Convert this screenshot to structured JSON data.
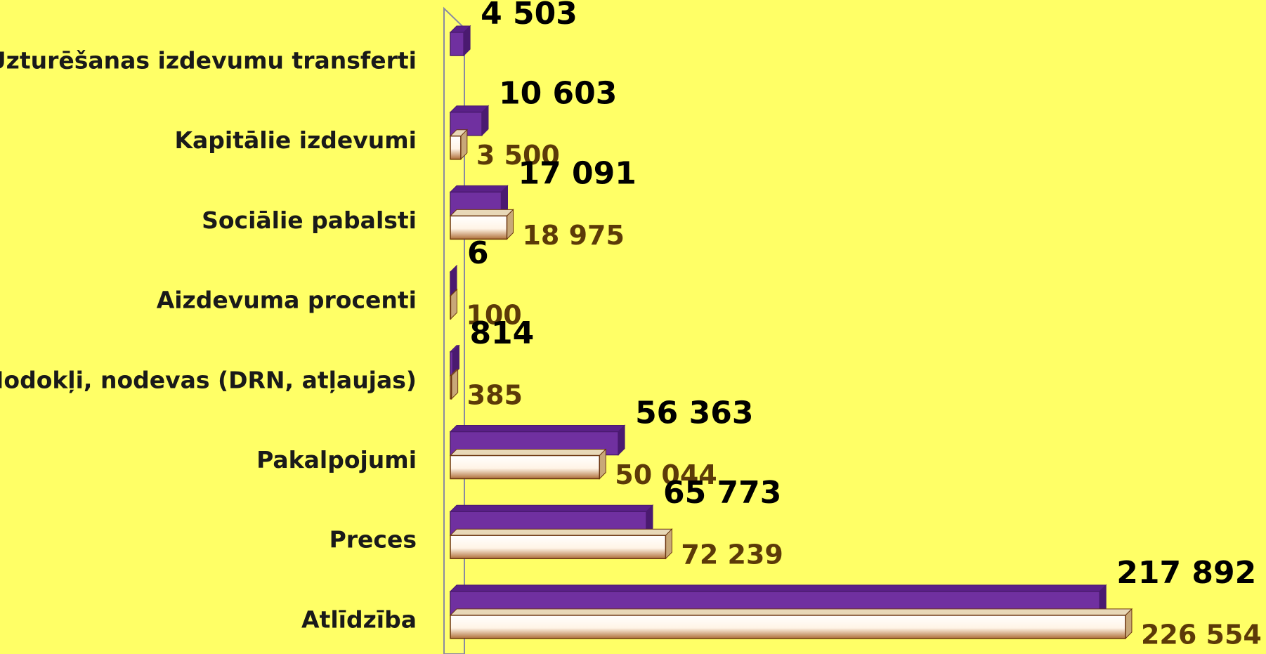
{
  "chart_data": {
    "type": "bar",
    "orientation": "horizontal",
    "categories": [
      "Uzturēšanas izdevumu transferti",
      "Kapitālie izdevumi",
      "Sociālie pabalsti",
      "Aizdevuma procenti",
      "Nodokļi, nodevas (DRN, atļaujas)",
      "Pakalpojumi",
      "Preces",
      "Atlīdzība"
    ],
    "series": [
      {
        "color": "#7030a0",
        "values": [
          4503,
          10603,
          17091,
          6,
          814,
          56363,
          65773,
          217892
        ],
        "value_labels": [
          "4 503",
          "10 603",
          "17 091",
          "6",
          "814",
          "56 363",
          "65 773",
          "217 892"
        ]
      },
      {
        "color": "#b0703a",
        "values": [
          null,
          3500,
          18975,
          100,
          385,
          50044,
          72239,
          226554
        ],
        "value_labels": [
          null,
          "3 500",
          "18 975",
          "100",
          "385",
          "50 044",
          "72 239",
          "226 554"
        ]
      }
    ],
    "xlim": [
      0,
      240000
    ]
  }
}
